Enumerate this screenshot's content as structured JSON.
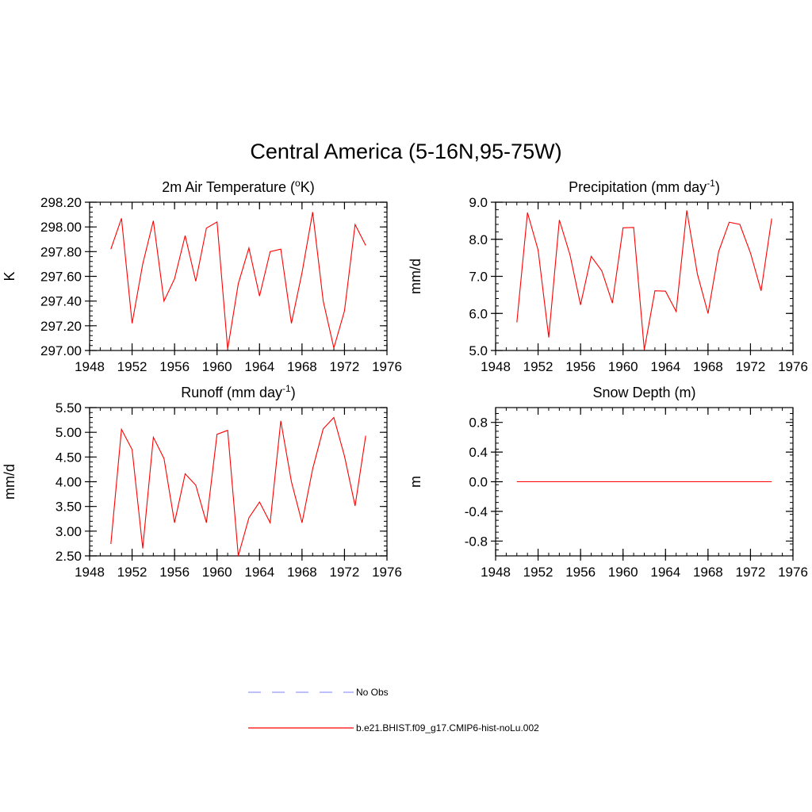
{
  "figure": {
    "title": "Central America (5-16N,95-75W)"
  },
  "chart_data": [
    {
      "type": "line",
      "title": "2m Air Temperature (",
      "title_super": "o",
      "title_post": "K)",
      "xlabel": "",
      "ylabel": "K",
      "xlim": [
        1948,
        1976
      ],
      "ylim": [
        297.0,
        298.2
      ],
      "xticks": [
        1948,
        1952,
        1956,
        1960,
        1964,
        1968,
        1972,
        1976
      ],
      "xtick_labels": [
        "1948",
        "1952",
        "1956",
        "1960",
        "1964",
        "1968",
        "1972",
        "1976"
      ],
      "yticks": [
        297.0,
        297.2,
        297.4,
        297.6,
        297.8,
        298.0,
        298.2
      ],
      "ytick_labels": [
        "297.00",
        "297.20",
        "297.40",
        "297.60",
        "297.80",
        "298.00",
        "298.20"
      ],
      "x": [
        1950,
        1951,
        1952,
        1953,
        1954,
        1955,
        1956,
        1957,
        1958,
        1959,
        1960,
        1961,
        1962,
        1963,
        1964,
        1965,
        1966,
        1967,
        1968,
        1969,
        1970,
        1971,
        1972,
        1973,
        1974
      ],
      "series": [
        {
          "name": "b.e21.BHIST.f09_g17.CMIP6-hist-noLu.002",
          "color": "#ff0000",
          "values": [
            297.82,
            298.07,
            297.22,
            297.7,
            298.05,
            297.4,
            297.58,
            297.93,
            297.56,
            297.99,
            298.04,
            297.01,
            297.54,
            297.83,
            297.44,
            297.8,
            297.82,
            297.22,
            297.63,
            298.12,
            297.4,
            297.02,
            297.32,
            298.02,
            297.85
          ]
        }
      ]
    },
    {
      "type": "line",
      "title": "Precipitation (mm day",
      "title_super": "-1",
      "title_post": ")",
      "xlabel": "",
      "ylabel": "mm/d",
      "xlim": [
        1948,
        1976
      ],
      "ylim": [
        5.0,
        9.0
      ],
      "xticks": [
        1948,
        1952,
        1956,
        1960,
        1964,
        1968,
        1972,
        1976
      ],
      "xtick_labels": [
        "1948",
        "1952",
        "1956",
        "1960",
        "1964",
        "1968",
        "1972",
        "1976"
      ],
      "yticks": [
        5.0,
        6.0,
        7.0,
        8.0,
        9.0
      ],
      "ytick_labels": [
        "5.0",
        "6.0",
        "7.0",
        "8.0",
        "9.0"
      ],
      "x": [
        1950,
        1951,
        1952,
        1953,
        1954,
        1955,
        1956,
        1957,
        1958,
        1959,
        1960,
        1961,
        1962,
        1963,
        1964,
        1965,
        1966,
        1967,
        1968,
        1969,
        1970,
        1971,
        1972,
        1973,
        1974
      ],
      "series": [
        {
          "name": "b.e21.BHIST.f09_g17.CMIP6-hist-noLu.002",
          "color": "#ff0000",
          "values": [
            5.76,
            8.72,
            7.71,
            5.35,
            8.52,
            7.58,
            6.23,
            7.54,
            7.15,
            6.28,
            8.31,
            8.32,
            5.02,
            6.61,
            6.6,
            6.05,
            8.78,
            7.06,
            6.0,
            7.67,
            8.46,
            8.4,
            7.63,
            6.61,
            8.56
          ]
        }
      ]
    },
    {
      "type": "line",
      "title": "Runoff (mm day",
      "title_super": "-1",
      "title_post": ")",
      "xlabel": "",
      "ylabel": "mm/d",
      "xlim": [
        1948,
        1976
      ],
      "ylim": [
        2.5,
        5.5
      ],
      "xticks": [
        1948,
        1952,
        1956,
        1960,
        1964,
        1968,
        1972,
        1976
      ],
      "xtick_labels": [
        "1948",
        "1952",
        "1956",
        "1960",
        "1964",
        "1968",
        "1972",
        "1976"
      ],
      "yticks": [
        2.5,
        3.0,
        3.5,
        4.0,
        4.5,
        5.0,
        5.5
      ],
      "ytick_labels": [
        "2.50",
        "3.00",
        "3.50",
        "4.00",
        "4.50",
        "5.00",
        "5.50"
      ],
      "x": [
        1950,
        1951,
        1952,
        1953,
        1954,
        1955,
        1956,
        1957,
        1958,
        1959,
        1960,
        1961,
        1962,
        1963,
        1964,
        1965,
        1966,
        1967,
        1968,
        1969,
        1970,
        1971,
        1972,
        1973,
        1974
      ],
      "series": [
        {
          "name": "b.e21.BHIST.f09_g17.CMIP6-hist-noLu.002",
          "color": "#ff0000",
          "values": [
            2.74,
            5.06,
            4.65,
            2.65,
            4.9,
            4.47,
            3.17,
            4.16,
            3.93,
            3.17,
            4.96,
            5.04,
            2.5,
            3.27,
            3.59,
            3.17,
            5.23,
            4.0,
            3.17,
            4.26,
            5.07,
            5.3,
            4.52,
            3.51,
            4.93
          ]
        }
      ]
    },
    {
      "type": "line",
      "title": "Snow Depth (m)",
      "title_super": "",
      "title_post": "",
      "xlabel": "",
      "ylabel": "m",
      "xlim": [
        1948,
        1976
      ],
      "ylim": [
        -1.0,
        1.0
      ],
      "xticks": [
        1948,
        1952,
        1956,
        1960,
        1964,
        1968,
        1972,
        1976
      ],
      "xtick_labels": [
        "1948",
        "1952",
        "1956",
        "1960",
        "1964",
        "1968",
        "1972",
        "1976"
      ],
      "yticks": [
        -0.8,
        -0.4,
        0.0,
        0.4,
        0.8
      ],
      "ytick_labels": [
        "-0.8",
        "-0.4",
        "0.0",
        "0.4",
        "0.8"
      ],
      "x": [
        1950,
        1951,
        1952,
        1953,
        1954,
        1955,
        1956,
        1957,
        1958,
        1959,
        1960,
        1961,
        1962,
        1963,
        1964,
        1965,
        1966,
        1967,
        1968,
        1969,
        1970,
        1971,
        1972,
        1973,
        1974
      ],
      "series": [
        {
          "name": "b.e21.BHIST.f09_g17.CMIP6-hist-noLu.002",
          "color": "#ff0000",
          "values": [
            0,
            0,
            0,
            0,
            0,
            0,
            0,
            0,
            0,
            0,
            0,
            0,
            0,
            0,
            0,
            0,
            0,
            0,
            0,
            0,
            0,
            0,
            0,
            0,
            0
          ]
        }
      ]
    }
  ],
  "legend": {
    "entries": [
      {
        "label": "No Obs",
        "color": "#9999ff",
        "style": "dashed"
      },
      {
        "label": "b.e21.BHIST.f09_g17.CMIP6-hist-noLu.002",
        "color": "#ff0000",
        "style": "solid"
      }
    ]
  }
}
